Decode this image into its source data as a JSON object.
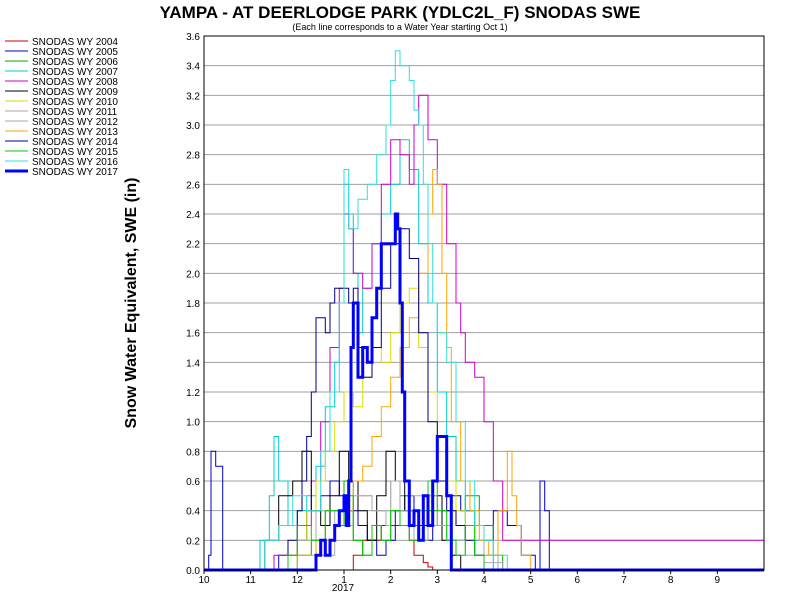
{
  "chart_data": {
    "type": "line",
    "title": "YAMPA - AT DEERLODGE PARK (YDLC2L_F) SNODAS SWE",
    "subtitle": "(Each line corresponds to a Water Year starting Oct 1)",
    "ylabel": "Snow Water Equivalent, SWE (in)",
    "xlabel": "",
    "x_year_label": "2017",
    "xlim": [
      10,
      22
    ],
    "ylim": [
      0,
      3.6
    ],
    "x_ticks": [
      {
        "v": 10,
        "label": "10"
      },
      {
        "v": 11,
        "label": "11"
      },
      {
        "v": 12,
        "label": "12"
      },
      {
        "v": 13,
        "label": "1"
      },
      {
        "v": 14,
        "label": "2"
      },
      {
        "v": 15,
        "label": "3"
      },
      {
        "v": 16,
        "label": "4"
      },
      {
        "v": 17,
        "label": "5"
      },
      {
        "v": 18,
        "label": "6"
      },
      {
        "v": 19,
        "label": "7"
      },
      {
        "v": 20,
        "label": "8"
      },
      {
        "v": 21,
        "label": "9"
      }
    ],
    "y_ticks": [
      "0.0",
      "0.2",
      "0.4",
      "0.6",
      "0.8",
      "1.0",
      "1.2",
      "1.4",
      "1.6",
      "1.8",
      "2.0",
      "2.2",
      "2.4",
      "2.6",
      "2.8",
      "3.0",
      "3.2",
      "3.4",
      "3.6"
    ],
    "grid": true,
    "legend_position": "top-left, outside plot",
    "series": [
      {
        "name": "SNODAS WY 2004",
        "color": "#cc0000",
        "width": 1,
        "x": [
          10,
          13.0,
          13.2,
          13.4,
          13.6,
          13.8,
          14.0,
          14.2,
          14.4,
          14.5,
          14.6,
          14.7,
          14.8,
          14.9,
          15.0,
          22
        ],
        "y": [
          0,
          0,
          0.1,
          0.2,
          0.2,
          0.3,
          0.3,
          0.3,
          0.2,
          0.1,
          0.1,
          0.05,
          0.02,
          0,
          0,
          0
        ]
      },
      {
        "name": "SNODAS WY 2005",
        "color": "#0000cc",
        "width": 1,
        "x": [
          10,
          10.1,
          10.15,
          10.25,
          10.4,
          10.6,
          11.0,
          11.3,
          11.6,
          12.0,
          12.2,
          12.5,
          12.7,
          12.9,
          13.1,
          13.3,
          13.5,
          13.7,
          13.9,
          14.1,
          14.3,
          14.5,
          14.7,
          14.9,
          15.1,
          15.3,
          15.5,
          15.8,
          16.0,
          16.2,
          16.5,
          16.8,
          17.1,
          17.2,
          17.3,
          17.4,
          22
        ],
        "y": [
          0,
          0.1,
          0.8,
          0.7,
          0,
          0,
          0,
          0,
          0.1,
          0.2,
          0.4,
          0.5,
          0.6,
          0.5,
          0.4,
          0.3,
          0.2,
          0.1,
          0.2,
          0.4,
          0.5,
          0.3,
          0.2,
          0.3,
          0.4,
          0.5,
          0.4,
          0.3,
          0.2,
          0.4,
          0.3,
          0.1,
          0,
          0.6,
          0.4,
          0,
          0
        ]
      },
      {
        "name": "SNODAS WY 2006",
        "color": "#00aa00",
        "width": 1,
        "x": [
          10,
          11.8,
          12.0,
          12.3,
          12.6,
          12.9,
          13.0,
          13.2,
          13.4,
          13.6,
          13.8,
          14.0,
          14.2,
          14.4,
          14.6,
          14.8,
          15.0,
          15.3,
          15.6,
          15.9,
          16.2,
          16.4,
          22
        ],
        "y": [
          0,
          0,
          0.1,
          0.2,
          0.4,
          0.3,
          0.6,
          0.2,
          0.1,
          0.3,
          0.2,
          0.4,
          0.5,
          0.3,
          0.2,
          0.4,
          0.3,
          0.2,
          0.5,
          0.3,
          0.1,
          0,
          0
        ]
      },
      {
        "name": "SNODAS WY 2007",
        "color": "#00cccc",
        "width": 1,
        "x": [
          10,
          11.0,
          11.2,
          11.4,
          11.5,
          11.6,
          11.8,
          12.0,
          12.2,
          12.4,
          12.6,
          12.8,
          12.9,
          13.0,
          13.1,
          13.2,
          13.3,
          13.4,
          13.6,
          13.8,
          14.0,
          14.2,
          14.4,
          14.6,
          14.8,
          15.0,
          15.2,
          15.4,
          15.6,
          15.8,
          16.0,
          16.2,
          22
        ],
        "y": [
          0,
          0,
          0.2,
          0.5,
          0.9,
          0.6,
          0.3,
          0.4,
          0.5,
          0.7,
          1.1,
          1.4,
          1.8,
          2.6,
          2.4,
          2.0,
          1.6,
          1.9,
          2.2,
          2.4,
          2.6,
          2.9,
          2.7,
          2.2,
          1.8,
          1.2,
          0.9,
          0.6,
          0.4,
          0.2,
          0.1,
          0,
          0
        ]
      },
      {
        "name": "SNODAS WY 2008",
        "color": "#cc00cc",
        "width": 1,
        "x": [
          10,
          11.0,
          11.5,
          12.0,
          12.3,
          12.5,
          12.7,
          12.9,
          13.0,
          13.1,
          13.2,
          13.4,
          13.6,
          13.8,
          14.0,
          14.2,
          14.4,
          14.5,
          14.6,
          14.8,
          15.0,
          15.2,
          15.4,
          15.5,
          15.6,
          15.8,
          16.0,
          16.2,
          16.4,
          22
        ],
        "y": [
          0,
          0,
          0.1,
          0.3,
          0.6,
          1.0,
          1.5,
          1.9,
          2.4,
          2.3,
          2.0,
          1.9,
          2.2,
          2.6,
          2.9,
          2.8,
          2.6,
          3.0,
          3.2,
          2.9,
          2.6,
          2.2,
          1.8,
          1.6,
          1.4,
          1.3,
          1.0,
          0.6,
          0.2,
          0
        ]
      },
      {
        "name": "SNODAS WY 2009",
        "color": "#000000",
        "width": 1,
        "x": [
          10,
          11.0,
          11.3,
          11.6,
          11.9,
          12.1,
          12.3,
          12.5,
          12.7,
          12.9,
          13.1,
          13.3,
          13.5,
          13.7,
          13.9,
          14.1,
          14.3,
          14.5,
          14.7,
          14.9,
          15.1,
          15.3,
          15.5,
          22
        ],
        "y": [
          0,
          0,
          0.2,
          0.5,
          0.6,
          0.8,
          0.4,
          0.3,
          0.5,
          0.8,
          0.6,
          0.4,
          0.2,
          0.5,
          0.8,
          0.6,
          0.4,
          0.2,
          0.3,
          0.5,
          0.2,
          0.1,
          0,
          0
        ]
      },
      {
        "name": "SNODAS WY 2010",
        "color": "#dddd00",
        "width": 1,
        "x": [
          10,
          11.5,
          11.8,
          12.0,
          12.2,
          12.4,
          12.6,
          12.8,
          13.0,
          13.2,
          13.4,
          13.6,
          13.8,
          14.0,
          14.2,
          14.4,
          14.6,
          14.8,
          15.0,
          15.2,
          15.4,
          15.6,
          15.8,
          16.0,
          22
        ],
        "y": [
          0,
          0,
          0.1,
          0.2,
          0.4,
          0.6,
          0.8,
          1.0,
          1.2,
          1.1,
          1.3,
          1.5,
          1.4,
          1.6,
          1.8,
          1.9,
          1.5,
          1.2,
          0.9,
          0.6,
          0.4,
          0.3,
          0.1,
          0,
          0
        ]
      },
      {
        "name": "SNODAS WY 2011",
        "color": "#aaaaaa",
        "width": 1,
        "x": [
          10,
          12.0,
          12.4,
          12.8,
          13.2,
          13.6,
          13.9,
          14.0,
          14.2,
          14.5,
          14.8,
          15.0,
          15.3,
          15.6,
          16.0,
          16.3,
          22
        ],
        "y": [
          0,
          0,
          0.1,
          0.3,
          0.5,
          0.4,
          0.3,
          0.6,
          0.4,
          0.2,
          0.5,
          0.3,
          0.2,
          0.3,
          0.1,
          0,
          0
        ]
      },
      {
        "name": "SNODAS WY 2012",
        "color": "#aaaaaa",
        "width": 1,
        "x": [
          10,
          11.0,
          11.3,
          11.6,
          12.0,
          12.4,
          12.8,
          13.2,
          13.6,
          14.0,
          14.4,
          14.8,
          15.2,
          15.6,
          16.0,
          16.4,
          22
        ],
        "y": [
          0,
          0,
          0.2,
          0.3,
          0.2,
          0.4,
          0.3,
          0.5,
          0.4,
          0.6,
          0.5,
          0.3,
          0.2,
          0.1,
          0.05,
          0,
          0
        ]
      },
      {
        "name": "SNODAS WY 2013",
        "color": "#ffa500",
        "width": 1,
        "x": [
          10,
          11.5,
          12.0,
          12.4,
          12.8,
          13.0,
          13.2,
          13.4,
          13.6,
          13.8,
          14.0,
          14.2,
          14.4,
          14.6,
          14.8,
          14.9,
          15.0,
          15.1,
          15.2,
          15.3,
          15.5,
          15.7,
          15.9,
          16.1,
          16.3,
          16.5,
          16.6,
          16.7,
          16.8,
          17.0,
          22
        ],
        "y": [
          0,
          0,
          0.1,
          0.2,
          0.3,
          0.4,
          0.6,
          0.7,
          0.9,
          1.1,
          1.3,
          1.5,
          1.7,
          2.0,
          2.4,
          2.7,
          2.6,
          2.0,
          1.5,
          1.0,
          0.6,
          0.4,
          0.2,
          0.1,
          0.4,
          0.8,
          0.5,
          0.3,
          0.1,
          0,
          0
        ]
      },
      {
        "name": "SNODAS WY 2014",
        "color": "#000080",
        "width": 1,
        "x": [
          10,
          11.5,
          11.8,
          12.0,
          12.1,
          12.2,
          12.3,
          12.4,
          12.5,
          12.6,
          12.7,
          12.8,
          12.9,
          13.0,
          13.1,
          13.2,
          13.3,
          13.4,
          13.6,
          13.8,
          14.0,
          14.2,
          14.4,
          14.6,
          14.8,
          15.0,
          15.2,
          15.4,
          15.6,
          15.8,
          16.0,
          22
        ],
        "y": [
          0,
          0,
          0.2,
          0.4,
          0.6,
          0.9,
          1.2,
          1.7,
          1.7,
          1.6,
          1.8,
          1.9,
          1.9,
          1.9,
          1.8,
          1.9,
          1.5,
          1.3,
          1.5,
          1.9,
          2.2,
          2.3,
          2.1,
          1.6,
          1.0,
          0.6,
          0.4,
          0.3,
          0.2,
          0.1,
          0,
          0
        ]
      },
      {
        "name": "SNODAS WY 2015",
        "color": "#00cc00",
        "width": 1,
        "x": [
          10,
          11.5,
          11.8,
          12.0,
          12.3,
          12.6,
          12.9,
          13.0,
          13.2,
          13.4,
          13.6,
          13.8,
          14.0,
          14.2,
          14.4,
          14.6,
          14.8,
          15.0,
          15.2,
          15.4,
          15.6,
          15.8,
          16.0,
          22
        ],
        "y": [
          0,
          0,
          0.1,
          0.3,
          0.2,
          0.4,
          0.3,
          0.5,
          0.2,
          0.1,
          0.3,
          0.2,
          0.4,
          0.3,
          0.2,
          0.4,
          0.6,
          0.4,
          0.2,
          0.1,
          0.3,
          0.1,
          0,
          0
        ]
      },
      {
        "name": "SNODAS WY 2016",
        "color": "#33dddd",
        "width": 1,
        "x": [
          10,
          11.0,
          11.3,
          11.6,
          11.9,
          12.2,
          12.5,
          12.7,
          12.9,
          13.0,
          13.1,
          13.3,
          13.5,
          13.7,
          13.9,
          14.0,
          14.1,
          14.2,
          14.3,
          14.4,
          14.5,
          14.6,
          14.7,
          14.8,
          14.9,
          15.0,
          15.2,
          15.4,
          15.6,
          15.8,
          16.0,
          16.2,
          16.5,
          22
        ],
        "y": [
          0,
          0,
          0.2,
          0.3,
          0.5,
          0.4,
          0.8,
          1.2,
          1.8,
          2.7,
          2.3,
          2.5,
          2.6,
          2.8,
          3.0,
          3.3,
          3.5,
          3.4,
          3.4,
          3.3,
          3.1,
          3.0,
          2.6,
          2.2,
          1.8,
          1.6,
          1.4,
          1.0,
          0.6,
          0.3,
          0.2,
          0.1,
          0,
          0
        ]
      },
      {
        "name": "SNODAS WY 2017",
        "color": "#0000ff",
        "width": 3,
        "x": [
          10,
          12.2,
          12.4,
          12.5,
          12.6,
          12.7,
          12.8,
          12.9,
          13.0,
          13.05,
          13.1,
          13.15,
          13.2,
          13.3,
          13.4,
          13.5,
          13.6,
          13.7,
          13.8,
          13.9,
          14.0,
          14.1,
          14.15,
          14.2,
          14.25,
          14.3,
          14.4,
          14.5,
          14.6,
          14.7,
          14.8,
          14.9,
          15.0,
          15.1,
          15.2,
          15.3,
          22
        ],
        "y": [
          0,
          0,
          0.1,
          0.2,
          0.1,
          0.2,
          0.3,
          0.4,
          0.5,
          0.3,
          0.6,
          1.5,
          1.8,
          1.3,
          1.5,
          1.4,
          1.7,
          1.9,
          2.2,
          2.2,
          2.2,
          2.4,
          2.3,
          1.8,
          1.2,
          0.6,
          0.3,
          0.4,
          0.2,
          0.5,
          0.3,
          0.6,
          0.9,
          0.9,
          0.5,
          0,
          0
        ]
      }
    ]
  }
}
